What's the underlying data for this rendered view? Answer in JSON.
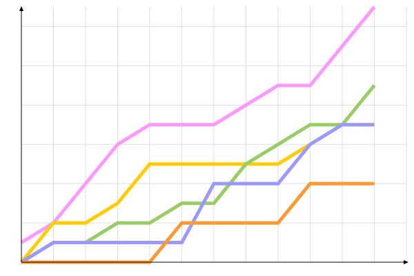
{
  "chart_data": {
    "type": "line",
    "title": "",
    "xlabel": "",
    "ylabel": "",
    "grid": true,
    "x": [
      0,
      1,
      2,
      3,
      4,
      5,
      6,
      7,
      8,
      9,
      10,
      11
    ],
    "xlim": [
      0,
      12.2
    ],
    "ylim": [
      0,
      6.5
    ],
    "series": [
      {
        "color": "#ff99ff",
        "values": [
          0.5,
          1,
          2,
          3,
          3.5,
          3.5,
          3.5,
          4,
          4.5,
          4.5,
          5.5,
          6.5
        ]
      },
      {
        "color": "#ffcc00",
        "values": [
          0,
          1,
          1,
          1.5,
          2.5,
          2.5,
          2.5,
          2.5,
          2.5,
          3,
          3.5,
          3.5
        ]
      },
      {
        "color": "#99cc66",
        "values": [
          0,
          0.5,
          0.5,
          1,
          1,
          1.5,
          1.5,
          2.5,
          3,
          3.5,
          3.5,
          4.5
        ]
      },
      {
        "color": "#9999ff",
        "values": [
          0,
          0.5,
          0.5,
          0.5,
          0.5,
          0.5,
          2,
          2,
          2,
          3,
          3.5,
          3.5
        ]
      },
      {
        "color": "#ff9933",
        "values": [
          0,
          0,
          0,
          0,
          0,
          1,
          1,
          1,
          1,
          2,
          2,
          2
        ]
      }
    ]
  }
}
